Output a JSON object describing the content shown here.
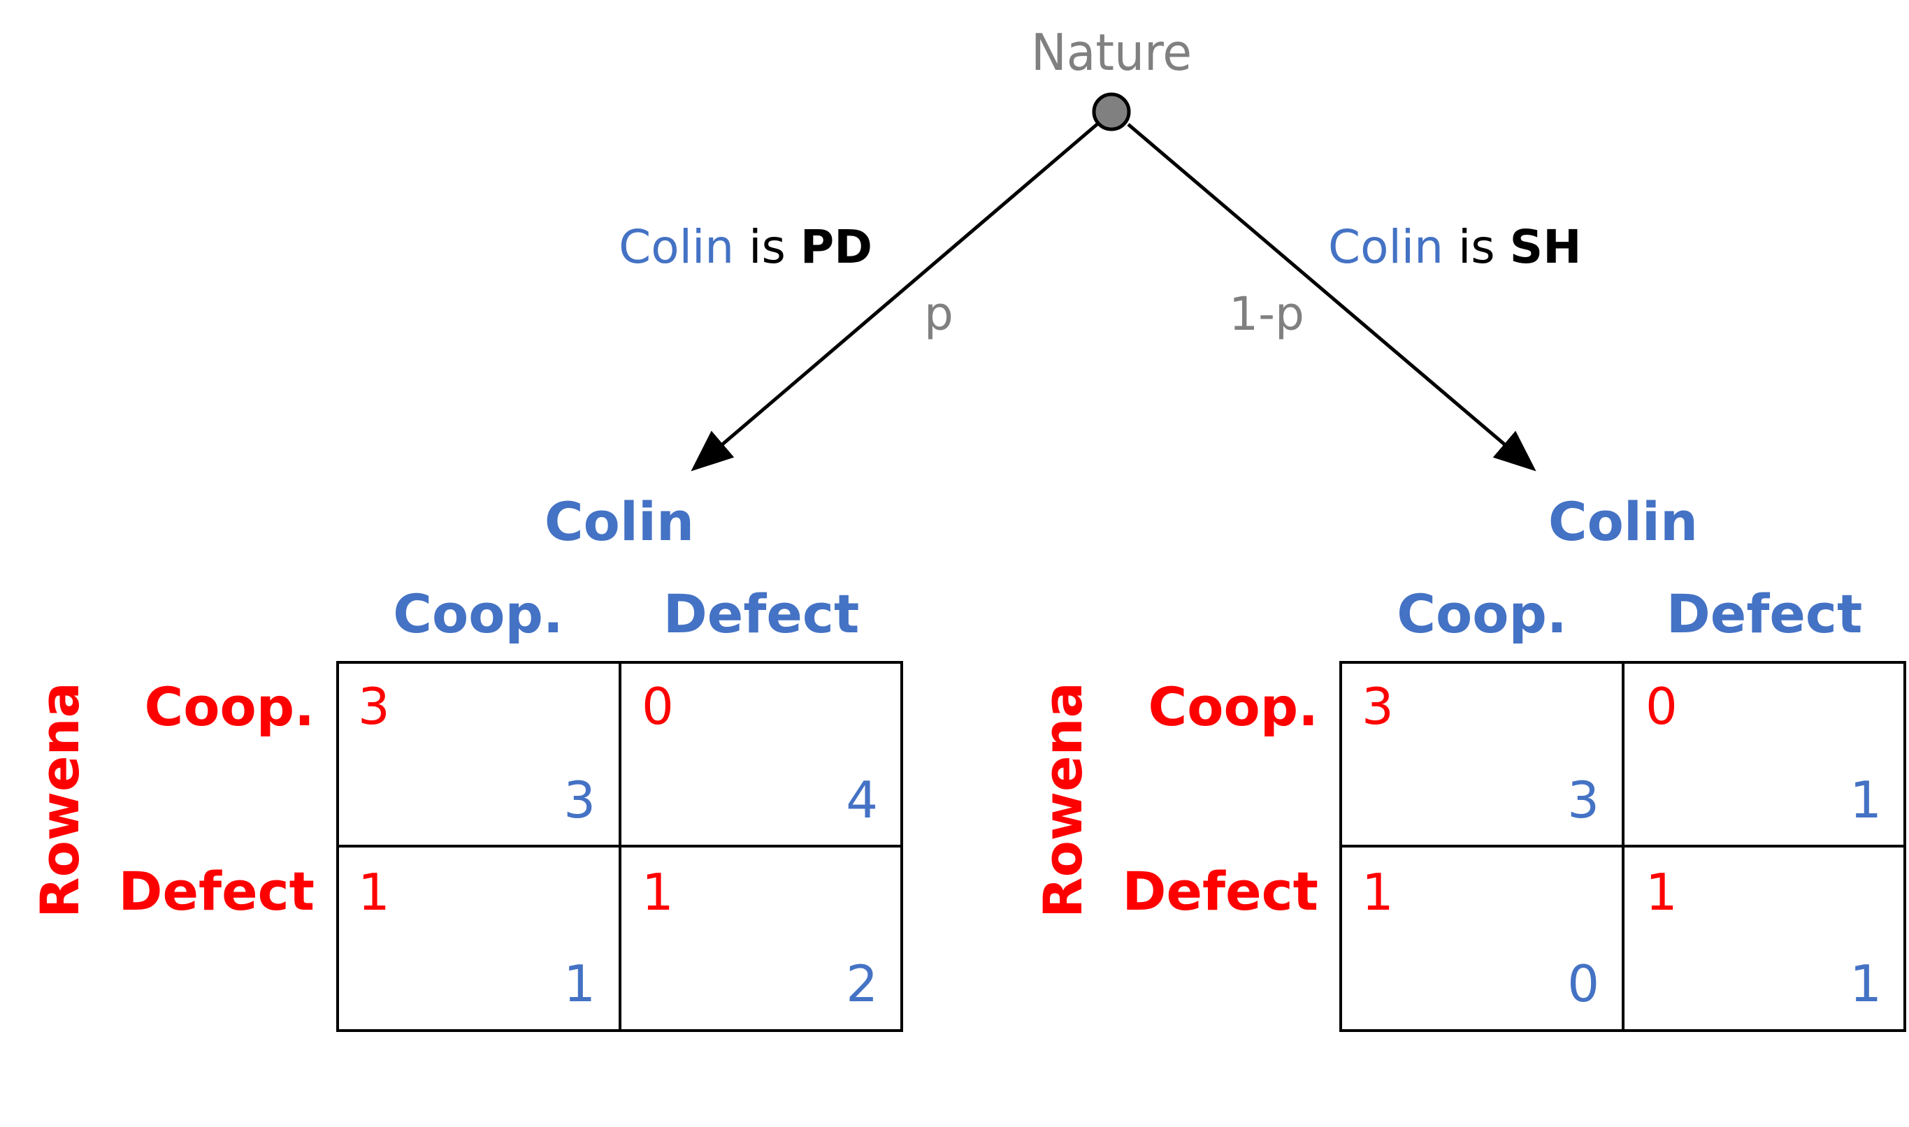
{
  "colors": {
    "colin": "#4472C4",
    "rowena": "#FF0000",
    "nature": "#808080",
    "line": "#000000",
    "node_fill": "#808080"
  },
  "nature": {
    "label": "Nature",
    "left_branch": {
      "player": "Colin",
      "connector": " is ",
      "type": "PD",
      "prob": "p"
    },
    "right_branch": {
      "player": "Colin",
      "connector": " is ",
      "type": "SH",
      "prob": "1-p"
    }
  },
  "games": [
    {
      "col_player": "Colin",
      "row_player": "Rowena",
      "col_labels": [
        "Coop.",
        "Defect"
      ],
      "row_labels": [
        "Coop.",
        "Defect"
      ],
      "payoffs": [
        [
          {
            "row": "3",
            "col": "3"
          },
          {
            "row": "0",
            "col": "4"
          }
        ],
        [
          {
            "row": "1",
            "col": "1"
          },
          {
            "row": "1",
            "col": "2"
          }
        ]
      ]
    },
    {
      "col_player": "Colin",
      "row_player": "Rowena",
      "col_labels": [
        "Coop.",
        "Defect"
      ],
      "row_labels": [
        "Coop.",
        "Defect"
      ],
      "payoffs": [
        [
          {
            "row": "3",
            "col": "3"
          },
          {
            "row": "0",
            "col": "1"
          }
        ],
        [
          {
            "row": "1",
            "col": "0"
          },
          {
            "row": "1",
            "col": "1"
          }
        ]
      ]
    }
  ]
}
